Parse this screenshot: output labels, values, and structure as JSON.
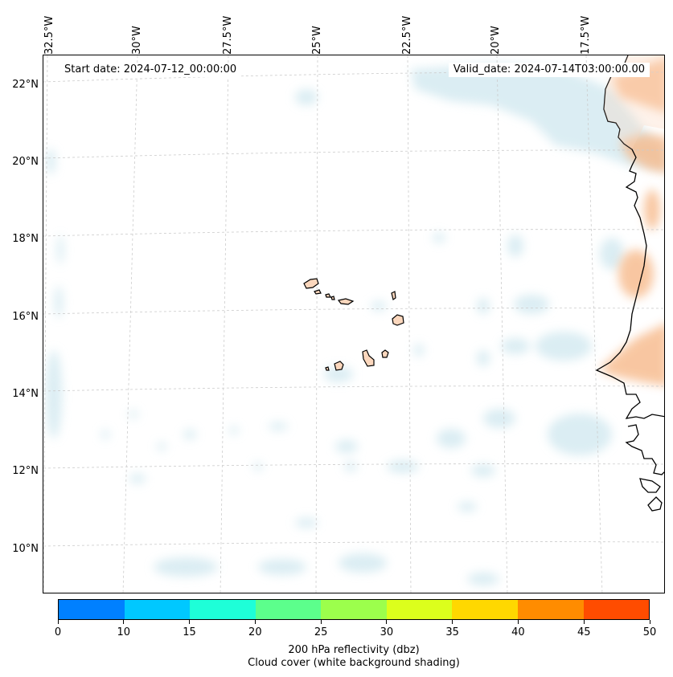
{
  "map": {
    "start_date_text": "Start date: 2024-07-12_00:00:00",
    "valid_date_text": "Valid_date: 2024-07-14T03:00:00.00",
    "lon_labels": [
      "32.5°W",
      "30°W",
      "27.5°W",
      "25°W",
      "22.5°W",
      "20°W",
      "17.5°W"
    ],
    "lat_labels": [
      "22°N",
      "20°N",
      "18°N",
      "16°N",
      "14°N",
      "12°N",
      "10°N"
    ],
    "land_color": "#fbd7bd",
    "cloud_color": "#cfe7ef",
    "reflectivity_shading_color": "#f7b98a"
  },
  "colorbar": {
    "tick_labels": [
      "0",
      "10",
      "15",
      "20",
      "25",
      "30",
      "35",
      "40",
      "45",
      "50"
    ],
    "colors": [
      "#0080ff",
      "#00c8ff",
      "#1effd8",
      "#5cff8c",
      "#9cff4c",
      "#dcff1c",
      "#ffd800",
      "#ff8c00",
      "#ff4c00"
    ],
    "label": "200 hPa reflectivity (dbz)",
    "sublabel": "Cloud cover (white background shading)"
  }
}
